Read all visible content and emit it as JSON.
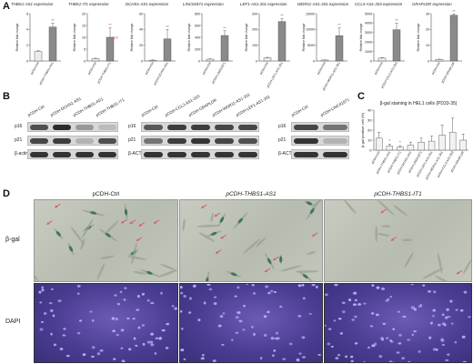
{
  "labels": {
    "a": "A",
    "b": "B",
    "c": "C",
    "d": "D"
  },
  "panel_a": {
    "ylabel": "Relative fold change",
    "charts": [
      {
        "title": "THBS1-AS1 expression",
        "type": "bar",
        "categories": [
          "pCDH-Ctrl",
          "pCDH-THBS1-AS1"
        ],
        "values": [
          1.2,
          4.3
        ],
        "errors": [
          0.1,
          0.5
        ],
        "ylim": [
          0,
          6
        ],
        "yticks": [
          "0",
          "2",
          "4",
          "6"
        ],
        "sig": "**"
      },
      {
        "title": "THBS1-IT1 expression",
        "type": "bar",
        "categories": [
          "pCDH-Ctrl",
          "pCDH-THBS1-IT1"
        ],
        "values": [
          1,
          10
        ],
        "errors": [
          0.2,
          4
        ],
        "ylim": [
          0,
          20
        ],
        "yticks": [
          "0",
          "5",
          "10",
          "15",
          "20"
        ],
        "sig": "**",
        "annotation": "pcDH"
      },
      {
        "title": "DCHS1-AS1 expression",
        "type": "bar",
        "categories": [
          "pCDH-Ctrl",
          "pCDH-DCHS1-AS1"
        ],
        "values": [
          1,
          28
        ],
        "errors": [
          0.3,
          12
        ],
        "ylim": [
          0,
          60
        ],
        "yticks": [
          "0",
          "20",
          "40",
          "60"
        ],
        "sig": "**"
      },
      {
        "title": "LINC01871 expression",
        "type": "bar",
        "categories": [
          "pCDH-Ctrl",
          "pCDH-LINC01871"
        ],
        "values": [
          30,
          430
        ],
        "errors": [
          5,
          80
        ],
        "ylim": [
          0,
          800
        ],
        "yticks": [
          "0",
          "200",
          "400",
          "600",
          "800"
        ],
        "sig": "**"
      },
      {
        "title": "LEF1-AS1-201 expression",
        "type": "bar",
        "categories": [
          "pCDH-Ctrl",
          "pCDH-LEF1-AS1-201"
        ],
        "values": [
          20,
          250
        ],
        "errors": [
          3,
          20
        ],
        "ylim": [
          0,
          300
        ],
        "yticks": [
          "0",
          "100",
          "200",
          "300"
        ],
        "sig": "**"
      },
      {
        "title": "WDR11-AS1-201 expression",
        "type": "bar",
        "categories": [
          "pCDH-Ctrl",
          "pCDH-WDR11-AS1-201"
        ],
        "values": [
          300,
          8000
        ],
        "errors": [
          60,
          2500
        ],
        "ylim": [
          0,
          15000
        ],
        "yticks": [
          "0",
          "5000",
          "10000",
          "15000"
        ],
        "sig": "**"
      },
      {
        "title": "CCL3-AS1-203 expression",
        "type": "bar",
        "categories": [
          "pCDH-Ctrl",
          "pCDH-CCL3-AS1-203"
        ],
        "values": [
          300,
          3300
        ],
        "errors": [
          50,
          700
        ],
        "ylim": [
          0,
          5000
        ],
        "yticks": [
          "0",
          "1000",
          "2000",
          "3000",
          "4000",
          "5000"
        ],
        "sig": "**"
      },
      {
        "title": "GRAPLDR expression",
        "type": "bar",
        "categories": [
          "pCDH-Ctrl",
          "pCDH-GRAPLDR"
        ],
        "values": [
          1,
          29
        ],
        "errors": [
          0.2,
          0.8
        ],
        "ylim": [
          0,
          30
        ],
        "yticks": [
          "0",
          "10",
          "20",
          "30"
        ],
        "sig": "**"
      }
    ]
  },
  "panel_b": {
    "groups": [
      {
        "headers": [
          "pCDH-Ctrl",
          "pCDH-DCHS1-AS1",
          "pCDH-THBS1-AS1",
          "pCDH-THBS1-IT1"
        ],
        "rows": [
          {
            "label": "p16",
            "intensity": [
              0.75,
              0.95,
              0.35,
              0.15
            ]
          },
          {
            "label": "p21",
            "intensity": [
              0.8,
              0.85,
              0.2,
              0.75
            ]
          },
          {
            "label": "β-actin",
            "intensity": [
              0.9,
              0.9,
              0.9,
              0.9
            ]
          }
        ]
      },
      {
        "headers": [
          "pCDH-Ctrl",
          "pCDH-CCL3-AS1-203",
          "pCDH-GRAPLDR",
          "pCDH-WDR11-AS1-201",
          "pCDH-LEF1-AS1-201"
        ],
        "rows": [
          {
            "label": "p16",
            "intensity": [
              0.7,
              0.85,
              0.85,
              0.8,
              0.8
            ]
          },
          {
            "label": "p21",
            "intensity": [
              0.55,
              0.85,
              0.9,
              0.8,
              0.75
            ]
          },
          {
            "label": "β-ACTIN",
            "intensity": [
              0.9,
              0.9,
              0.9,
              0.9,
              0.9
            ]
          }
        ]
      },
      {
        "headers": [
          "pCDH-Ctrl",
          "pCDH-LINC01871"
        ],
        "rows": [
          {
            "label": "p16",
            "intensity": [
              0.8,
              0.55
            ]
          },
          {
            "label": "p21",
            "intensity": [
              0.9,
              0.2
            ]
          },
          {
            "label": "β-ACTIN",
            "intensity": [
              0.9,
              0.9
            ]
          }
        ]
      }
    ]
  },
  "chart_data": {
    "type": "bar",
    "title": "β-gal staining in HEL1 cells (PD33-35)",
    "ylabel": "β-gal positive cell (%)",
    "categories": [
      "pCDH-Ctrl",
      "pCDH-THBS1-AS1",
      "pCDH-THBS1-IT1",
      "pCDH-DCHS1-AS1",
      "pCDH-LINC01871",
      "pCDH-LEF1-AS1-201",
      "pCDH-WDR11-AS1-201",
      "pCDH-CCL3-AS1-203",
      "pCDH-GRAPLDR"
    ],
    "values": [
      12,
      4,
      3,
      5,
      8,
      9,
      15,
      18,
      10
    ],
    "errors": [
      6,
      2,
      1.5,
      3,
      4,
      5,
      10,
      14,
      6
    ],
    "sig": [
      "",
      "*",
      "*",
      "",
      "",
      "",
      "",
      "",
      ""
    ],
    "ylim": [
      0,
      40
    ],
    "yticks": [
      "0",
      "10",
      "20",
      "30",
      "40"
    ]
  },
  "panel_d": {
    "columns": [
      "pCDH-Ctrl",
      "pCDH-THBS1-AS1",
      "pCDH-THBS1-IT1"
    ],
    "rows": [
      "β-gal",
      "DAPI"
    ]
  },
  "colors": {
    "bar_ctrl": "#ececec",
    "bar_exp": "#8a8a8a",
    "sig": "#d9534f",
    "cell": "#9aa28f",
    "stain": "#2f6b5a",
    "arrow": "#e0506e",
    "nucleus": "#b9b3ff"
  }
}
